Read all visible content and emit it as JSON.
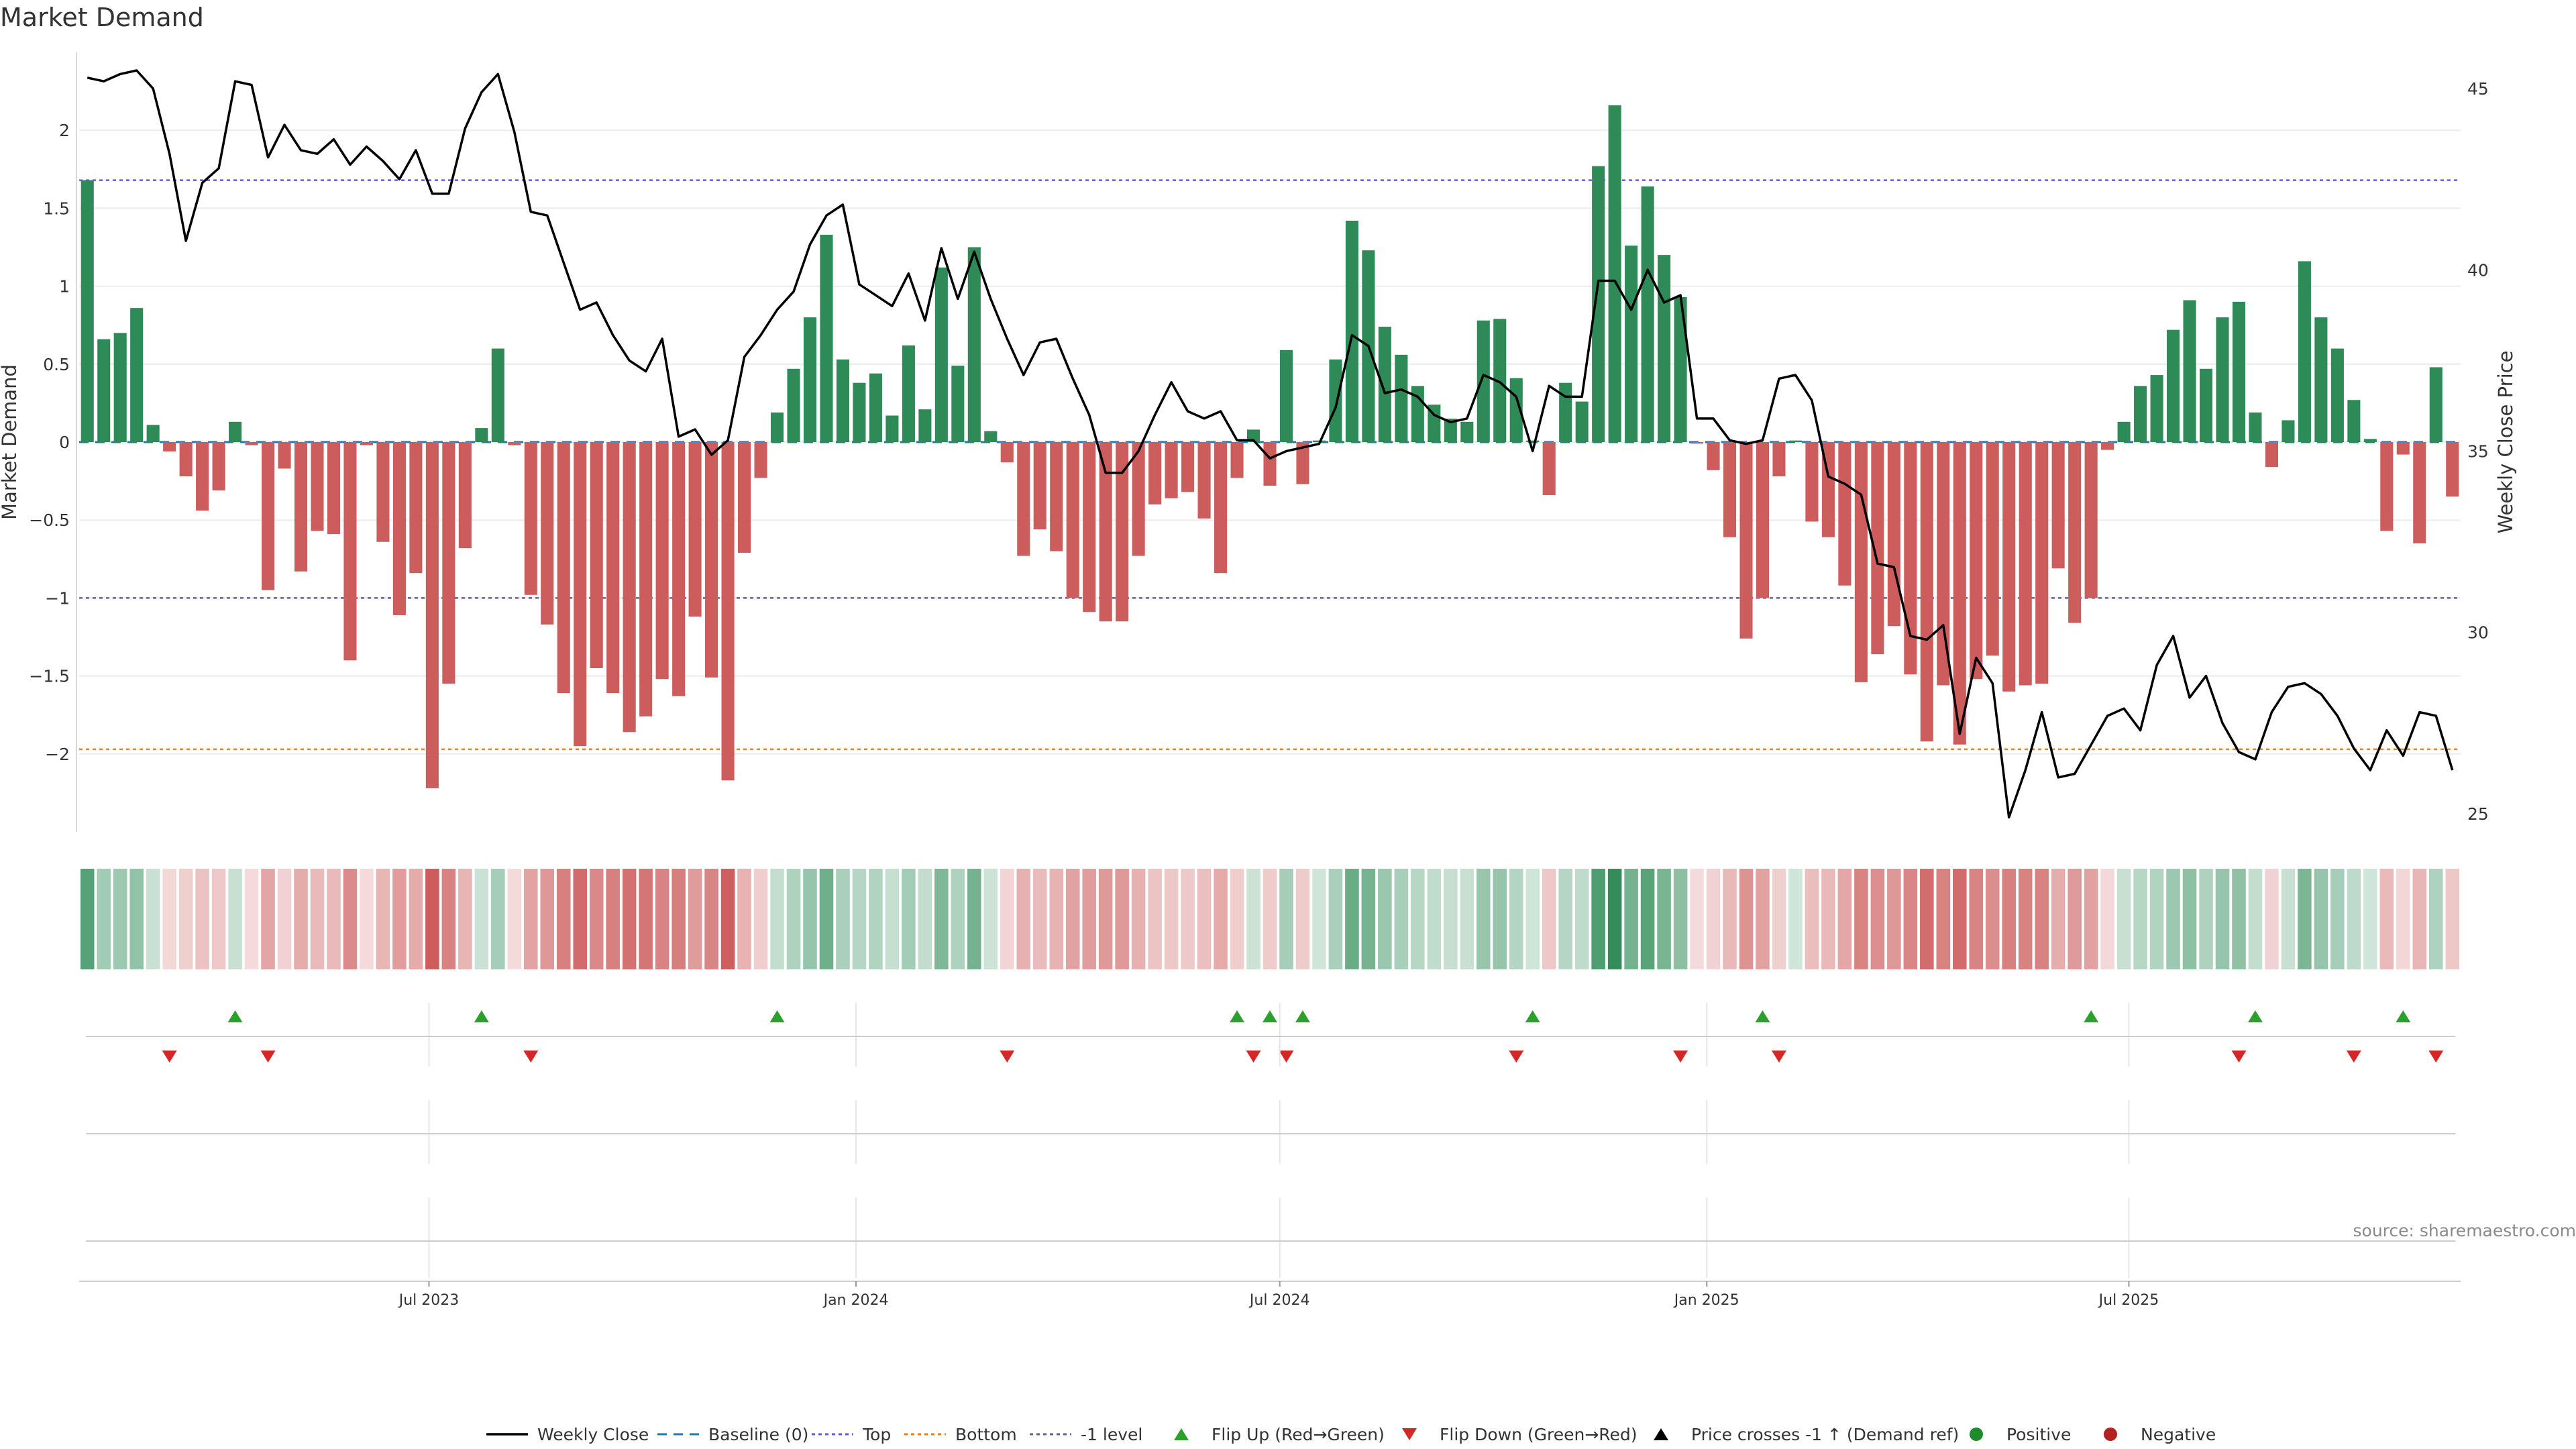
{
  "chart_data": {
    "type": "bar",
    "title": "Market Demand",
    "credit": "source: sharemaestro.com",
    "ylabel_left": "Market Demand",
    "ylabel_right": "Weekly Close Price",
    "ylim_left": [
      -2.5,
      2.5
    ],
    "ylim_right": [
      24.5,
      46.0
    ],
    "left_ticks": [
      {
        "v": 2,
        "label": "2"
      },
      {
        "v": 1.5,
        "label": "1.5"
      },
      {
        "v": 1,
        "label": "1"
      },
      {
        "v": 0.5,
        "label": "0.5"
      },
      {
        "v": 0,
        "label": "0"
      },
      {
        "v": -0.5,
        "label": "−0.5"
      },
      {
        "v": -1,
        "label": "−1"
      },
      {
        "v": -1.5,
        "label": "−1.5"
      },
      {
        "v": -2,
        "label": "−2"
      }
    ],
    "right_ticks": [
      {
        "v": 45,
        "label": "45"
      },
      {
        "v": 40,
        "label": "40"
      },
      {
        "v": 35,
        "label": "35"
      },
      {
        "v": 30,
        "label": "30"
      },
      {
        "v": 25,
        "label": "25"
      }
    ],
    "x_ticks": [
      {
        "i": 21.3,
        "label": "Jul 2023"
      },
      {
        "i": 47.3,
        "label": "Jan 2024"
      },
      {
        "i": 73.1,
        "label": "Jul 2024"
      },
      {
        "i": 99.1,
        "label": "Jan 2025"
      },
      {
        "i": 124.8,
        "label": "Jul 2025"
      }
    ],
    "reference_lines": {
      "top": 1.68,
      "bottom": -1.97,
      "minus1": -1.0,
      "baseline": 0
    },
    "colors": {
      "positive": "#2e8b57",
      "negative": "#cd5c5c",
      "price": "#000000",
      "top": "#6a5acd",
      "bottom": "#e67e22",
      "minus1": "#6b5b95",
      "baseline": "#1f77b4",
      "flip_up": "#2ca02c",
      "flip_down": "#d62728"
    },
    "demand": [
      1.68,
      0.66,
      0.7,
      0.86,
      0.11,
      -0.06,
      -0.22,
      -0.44,
      -0.31,
      0.13,
      -0.02,
      -0.95,
      -0.17,
      -0.83,
      -0.57,
      -0.59,
      -1.4,
      -0.02,
      -0.64,
      -1.11,
      -0.84,
      -2.22,
      -1.55,
      -0.68,
      0.09,
      0.6,
      -0.02,
      -0.98,
      -1.17,
      -1.61,
      -1.95,
      -1.45,
      -1.61,
      -1.86,
      -1.76,
      -1.52,
      -1.63,
      -1.12,
      -1.51,
      -2.17,
      -0.71,
      -0.23,
      0.19,
      0.47,
      0.8,
      1.33,
      0.53,
      0.38,
      0.44,
      0.17,
      0.62,
      0.21,
      1.12,
      0.49,
      1.25,
      0.07,
      -0.13,
      -0.73,
      -0.56,
      -0.7,
      -1.0,
      -1.09,
      -1.15,
      -1.15,
      -0.73,
      -0.4,
      -0.36,
      -0.32,
      -0.49,
      -0.84,
      -0.23,
      0.08,
      -0.28,
      0.59,
      -0.27,
      0.01,
      0.53,
      1.42,
      1.23,
      0.74,
      0.56,
      0.36,
      0.24,
      0.15,
      0.13,
      0.78,
      0.79,
      0.41,
      0.01,
      -0.34,
      0.38,
      0.26,
      1.77,
      2.16,
      1.26,
      1.64,
      1.2,
      0.93,
      -0.01,
      -0.18,
      -0.61,
      -1.26,
      -1.0,
      -0.22,
      0.01,
      -0.51,
      -0.61,
      -0.92,
      -1.54,
      -1.36,
      -1.18,
      -1.49,
      -1.92,
      -1.56,
      -1.94,
      -1.52,
      -1.37,
      -1.6,
      -1.56,
      -1.55,
      -0.81,
      -1.16,
      -1.0,
      -0.05,
      0.13,
      0.36,
      0.43,
      0.72,
      0.91,
      0.47,
      0.8,
      0.9,
      0.19,
      -0.16,
      0.14,
      1.16,
      0.8,
      0.6,
      0.27,
      0.02,
      -0.57,
      -0.08,
      -0.65,
      0.48,
      -0.35
    ],
    "price": [
      45.3,
      45.2,
      45.4,
      45.5,
      45.0,
      43.2,
      40.8,
      42.4,
      42.8,
      45.2,
      45.1,
      43.1,
      44.0,
      43.3,
      43.2,
      43.6,
      42.9,
      43.4,
      43.0,
      42.5,
      43.3,
      42.1,
      42.1,
      43.9,
      44.9,
      45.4,
      43.8,
      41.6,
      41.5,
      40.2,
      38.9,
      39.1,
      38.2,
      37.5,
      37.2,
      38.1,
      35.4,
      35.6,
      34.9,
      35.3,
      37.6,
      38.2,
      38.9,
      39.4,
      40.7,
      41.5,
      41.8,
      39.6,
      39.3,
      39.0,
      39.9,
      38.6,
      40.6,
      39.2,
      40.5,
      39.2,
      38.1,
      37.1,
      38.0,
      38.1,
      37.0,
      36.0,
      34.4,
      34.4,
      35.0,
      36.0,
      36.9,
      36.1,
      35.9,
      36.1,
      35.3,
      35.3,
      34.8,
      35.0,
      35.1,
      35.2,
      36.2,
      38.2,
      37.9,
      36.6,
      36.7,
      36.5,
      36.0,
      35.8,
      35.9,
      37.1,
      36.9,
      36.5,
      35.0,
      36.8,
      36.5,
      36.5,
      39.7,
      39.7,
      38.9,
      40.0,
      39.1,
      39.3,
      35.9,
      35.9,
      35.3,
      35.2,
      35.3,
      37.0,
      37.1,
      36.4,
      34.3,
      34.1,
      33.8,
      31.9,
      31.8,
      29.9,
      29.8,
      30.2,
      27.2,
      29.3,
      28.6,
      24.9,
      26.2,
      27.8,
      26.0,
      26.1,
      26.9,
      27.7,
      27.9,
      27.3,
      29.1,
      29.9,
      28.2,
      28.8,
      27.5,
      26.7,
      26.5,
      27.8,
      28.5,
      28.6,
      28.3,
      27.7,
      26.8,
      26.2,
      27.3,
      26.6,
      27.8,
      27.7,
      26.2
    ],
    "flip_up_idx": [
      9,
      24,
      42,
      70,
      72,
      74,
      88,
      102,
      122,
      132,
      141
    ],
    "flip_down_idx": [
      5,
      11,
      27,
      56,
      71,
      73,
      87,
      97,
      103,
      131,
      138,
      143
    ],
    "legend": [
      "Weekly Close",
      "Baseline (0)",
      "Top",
      "Bottom",
      "-1 level",
      "Flip Up (Red→Green)",
      "Flip Down (Green→Red)",
      "Price crosses -1 ↑ (Demand ref)",
      "Positive",
      "Negative"
    ]
  }
}
